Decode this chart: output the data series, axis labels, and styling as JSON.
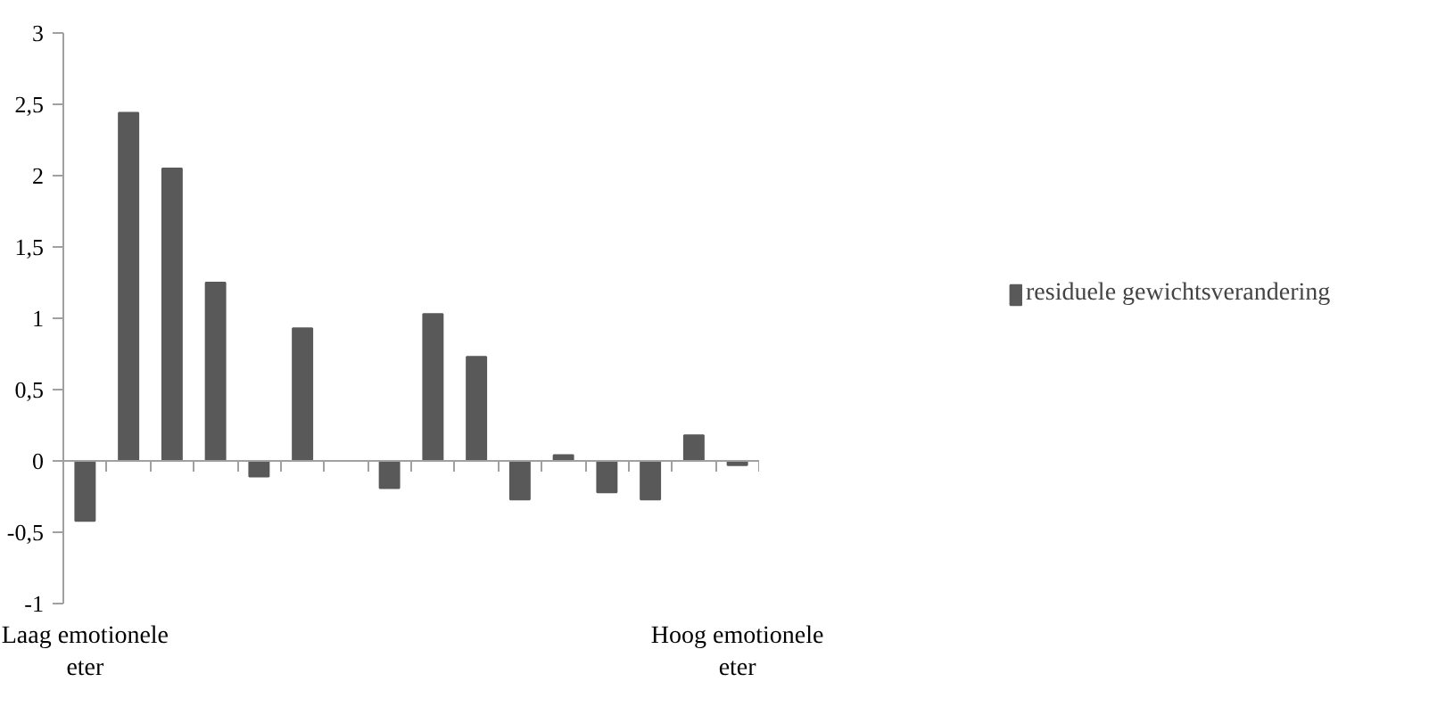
{
  "chart_data": {
    "type": "bar",
    "categories": [
      "Laag emotionele eter",
      null,
      null,
      null,
      null,
      null,
      null,
      null,
      null,
      null,
      null,
      null,
      null,
      null,
      null,
      "Hoog emotionele eter"
    ],
    "series": [
      {
        "name": "residuele gewichtsverandering",
        "color": "#595959",
        "values": [
          -0.42,
          2.44,
          2.05,
          1.25,
          -0.11,
          0.93,
          null,
          -0.19,
          1.03,
          0.73,
          -0.27,
          0.04,
          -0.22,
          -0.27,
          0.18,
          -0.03
        ]
      }
    ],
    "ylim": [
      -1,
      3
    ],
    "yticks": [
      -1,
      {
        "value": -0.5,
        "label": "-0,5"
      },
      0,
      {
        "value": 0.5,
        "label": "0,5"
      },
      1,
      {
        "value": 1.5,
        "label": "1,5"
      },
      2,
      {
        "value": 2.5,
        "label": "2,5"
      },
      3
    ],
    "legend": "right"
  }
}
